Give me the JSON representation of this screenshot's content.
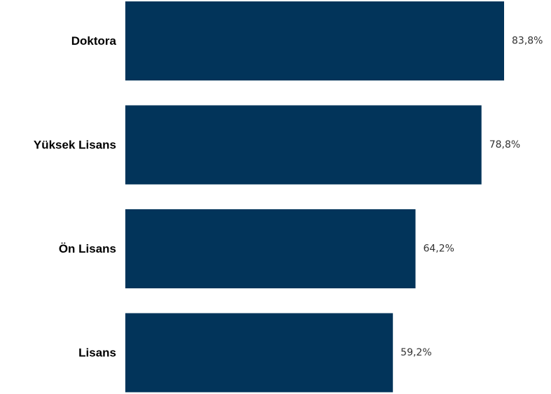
{
  "chart_data": {
    "type": "bar",
    "orientation": "horizontal",
    "categories": [
      "Doktora",
      "Yüksek Lisans",
      "Ön Lisans",
      "Lisans"
    ],
    "values": [
      83.8,
      78.8,
      64.2,
      59.2
    ],
    "value_labels": [
      "83,8%",
      "78,8%",
      "64,2%",
      "59,2%"
    ],
    "title": "",
    "xlabel": "",
    "ylabel": "",
    "xlim": [
      0,
      100
    ],
    "grid": false,
    "legend": "none",
    "bar_color": "#02345A"
  }
}
